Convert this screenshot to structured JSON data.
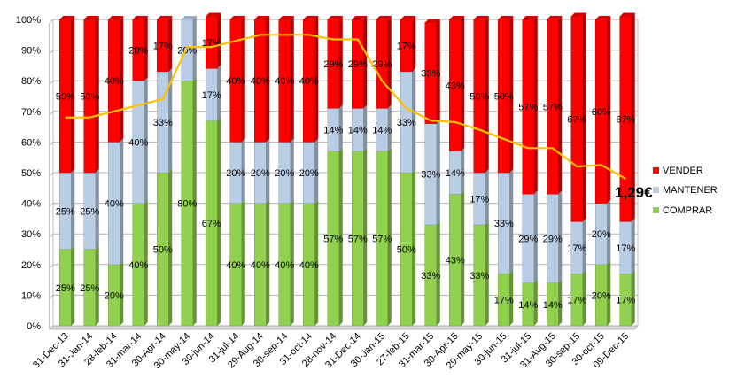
{
  "chart_data": {
    "type": "bar",
    "stacked": true,
    "categories": [
      "31-Dec-13",
      "31-Jan-14",
      "28-feb-14",
      "31-mar-14",
      "30-Apr-14",
      "30-may-14",
      "30-jun-14",
      "31-jul-14",
      "29-Aug-14",
      "30-sep-14",
      "31-oct-14",
      "28-nov-14",
      "31-Dec-14",
      "30-Jan-15",
      "27-feb-15",
      "31-mar-15",
      "30-Apr-15",
      "29-may-15",
      "30-jun-15",
      "31-jul-15",
      "31-Aug-15",
      "30-sep-15",
      "30-oct-15",
      "09-Dec-15"
    ],
    "series": [
      {
        "name": "COMPRAR",
        "color": "#92d050",
        "values": [
          25,
          25,
          20,
          40,
          50,
          80,
          67,
          40,
          40,
          40,
          40,
          57,
          57,
          57,
          50,
          33,
          43,
          33,
          17,
          14,
          14,
          17,
          20,
          17
        ]
      },
      {
        "name": "MANTENER",
        "color": "#b9cde5",
        "values": [
          25,
          25,
          40,
          40,
          33,
          20,
          17,
          20,
          20,
          20,
          20,
          14,
          14,
          14,
          33,
          33,
          14,
          17,
          33,
          29,
          29,
          17,
          20,
          17
        ]
      },
      {
        "name": "VENDER",
        "color": "#ff0000",
        "values": [
          50,
          50,
          40,
          20,
          17,
          0,
          17,
          40,
          40,
          40,
          40,
          29,
          29,
          29,
          17,
          33,
          43,
          50,
          50,
          57,
          57,
          67,
          60,
          67
        ]
      }
    ],
    "line": {
      "color": "#ffc000",
      "values": [
        68,
        68,
        70,
        72,
        74,
        91,
        91,
        93,
        95,
        95,
        95,
        93.5,
        93.5,
        80,
        71,
        67,
        66.5,
        64,
        61,
        58,
        58,
        52,
        52.5,
        48
      ],
      "end_label": "1,29€"
    },
    "data_labels": {
      "COMPRAR": [
        "25%",
        "25%",
        "20%",
        "40%",
        "50%",
        "80%",
        "67%",
        "40%",
        "40%",
        "40%",
        "40%",
        "57%",
        "57%",
        "57%",
        "50%",
        "33%",
        "43%",
        "33%",
        "17%",
        "14%",
        "14%",
        "17%",
        "20%",
        "17%"
      ],
      "MANTENER": [
        "25%",
        "25%",
        "40%",
        "40%",
        "33%",
        "20%",
        "17%",
        "20%",
        "20%",
        "20%",
        "20%",
        "14%",
        "14%",
        "14%",
        "33%",
        "33%",
        "14%",
        "17%",
        "33%",
        "29%",
        "29%",
        "17%",
        "20%",
        "17%"
      ],
      "VENDER": [
        "50%",
        "50%",
        "40%",
        "20%",
        "17%",
        "",
        "17%",
        "40%",
        "40%",
        "40%",
        "40%",
        "29%",
        "29%",
        "29%",
        "17%",
        "33%",
        "43%",
        "50%",
        "50%",
        "57%",
        "57%",
        "67%",
        "60%",
        "67%"
      ]
    },
    "y_ticks": [
      "0%",
      "10%",
      "20%",
      "30%",
      "40%",
      "50%",
      "60%",
      "70%",
      "80%",
      "90%",
      "100%"
    ],
    "ylim": [
      0,
      100
    ],
    "grid": true,
    "legend_position": "right",
    "legend": [
      "VENDER",
      "MANTENER",
      "COMPRAR"
    ]
  }
}
